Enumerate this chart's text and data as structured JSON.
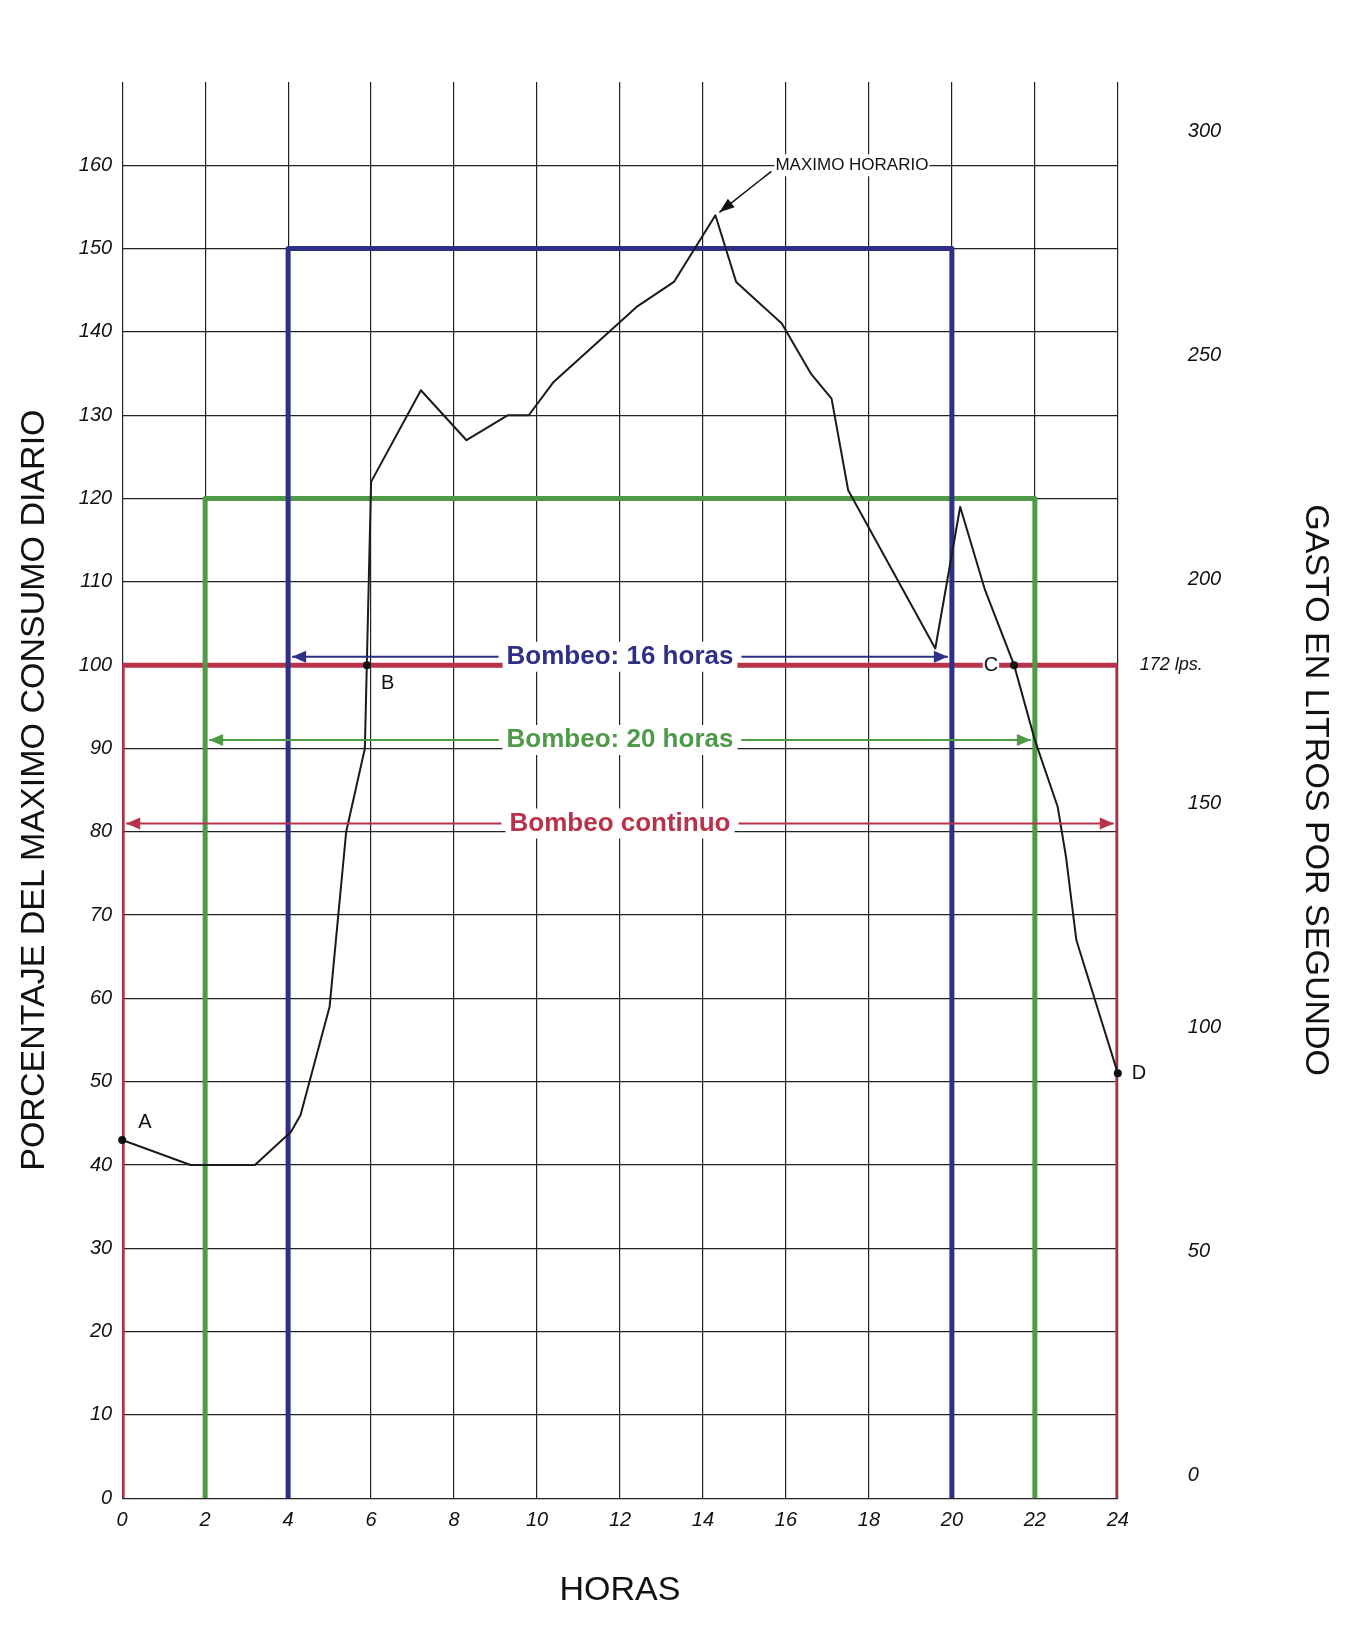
{
  "chart_data": {
    "type": "line",
    "xlabel": "HORAS",
    "ylabel": "PORCENTAJE DEL MAXIMO CONSUMO DIARIO",
    "y2label": "GASTO EN LITROS POR SEGUNDO",
    "xlim": [
      0,
      24
    ],
    "xticks": [
      0,
      2,
      4,
      6,
      8,
      10,
      12,
      14,
      16,
      18,
      20,
      22,
      24
    ],
    "ylim": [
      0,
      170
    ],
    "yticks": [
      0,
      10,
      20,
      30,
      40,
      50,
      60,
      70,
      80,
      90,
      100,
      110,
      120,
      130,
      140,
      150,
      160
    ],
    "y2lim": [
      -5,
      311
    ],
    "y2ticks": [
      0,
      50,
      100,
      150,
      200,
      250,
      300
    ],
    "grid": true,
    "marker": "none",
    "line_style": "solid",
    "series": [
      {
        "color": "#1a1a1a",
        "x": [
          0,
          1.65,
          3.2,
          4.07,
          4.3,
          5.0,
          5.4,
          5.85,
          6.0,
          7.2,
          8.3,
          9.3,
          9.8,
          10.4,
          12.4,
          13.3,
          14.3,
          14.8,
          15.9,
          16.6,
          17.1,
          17.5,
          19.6,
          20.2,
          20.8,
          21.5,
          22.0,
          22.55,
          22.75,
          23.0,
          24
        ],
        "values": [
          43,
          40,
          40,
          44,
          46,
          59,
          80,
          90,
          122,
          133,
          127,
          130,
          130,
          134,
          143,
          146,
          154,
          146,
          141,
          135,
          132,
          121,
          102,
          119,
          109,
          100,
          91,
          83,
          77,
          67,
          51
        ]
      },
      {
        "name": "Bombeo: 16 horas",
        "color": "#2e2f86",
        "x": [
          4,
          4,
          20,
          20
        ],
        "values": [
          0,
          150,
          150,
          0
        ]
      },
      {
        "name": "Bombeo: 20 horas",
        "color": "#4f9a48",
        "x": [
          2,
          2,
          22,
          22
        ],
        "values": [
          0,
          120,
          120,
          0
        ]
      },
      {
        "name": "Bombeo continuo",
        "color": "#b8324a",
        "x": [
          0,
          0,
          24,
          24
        ],
        "values": [
          0,
          100,
          100,
          0
        ]
      }
    ],
    "annotations": [
      {
        "text": "A",
        "x": 0,
        "y": 43
      },
      {
        "text": "B",
        "x": 5.9,
        "y": 100
      },
      {
        "text": "C",
        "x": 21.5,
        "y": 100
      },
      {
        "text": "D",
        "x": 24,
        "y": 51
      },
      {
        "text": "MAXIMO HORARIO",
        "x": 14.3,
        "y": 154
      },
      {
        "text": "172 lps.",
        "x": 24,
        "y": 100
      }
    ]
  }
}
